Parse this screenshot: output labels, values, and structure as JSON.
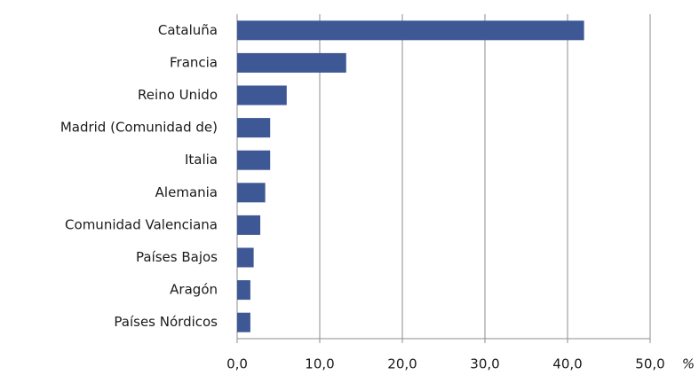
{
  "chart_data": {
    "type": "barh",
    "categories": [
      "Cataluña",
      "Francia",
      "Reino Unido",
      "Madrid (Comunidad de)",
      "Italia",
      "Alemania",
      "Comunidad Valenciana",
      "Países Bajos",
      "Aragón",
      "Países Nórdicos"
    ],
    "values": [
      42.0,
      13.2,
      6.0,
      4.0,
      4.0,
      3.4,
      2.8,
      2.0,
      1.6,
      1.6
    ],
    "color": "#3e5795",
    "xlim": [
      0,
      50
    ],
    "xticks": [
      {
        "value": 0,
        "label": "0,0"
      },
      {
        "value": 10,
        "label": "10,0"
      },
      {
        "value": 20,
        "label": "20,0"
      },
      {
        "value": 30,
        "label": "30,0"
      },
      {
        "value": 40,
        "label": "40,0"
      },
      {
        "value": 50,
        "label": "50,0"
      }
    ],
    "x_axis_label": "%",
    "grid": true
  }
}
